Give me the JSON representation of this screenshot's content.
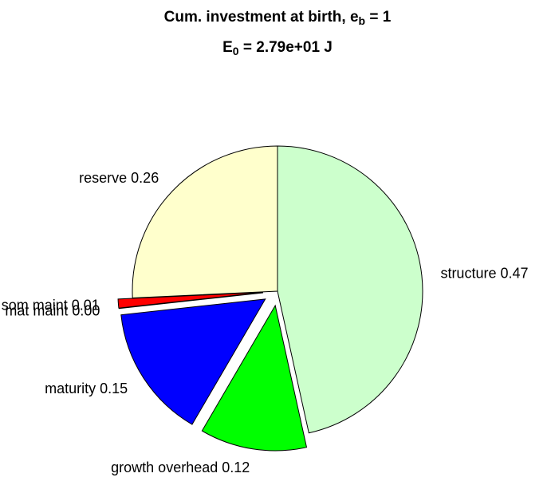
{
  "chart_data": {
    "type": "pie",
    "title": [
      {
        "text": "Cum. investment at birth, e"
      },
      {
        "text": "b",
        "sub": true
      },
      {
        "text": " = 1"
      }
    ],
    "subtitle": [
      {
        "text": "E"
      },
      {
        "text": "0",
        "sub": true
      },
      {
        "text": " = 2.79e+01 J"
      }
    ],
    "categories": [
      "reserve",
      "som maint",
      "mat maint",
      "maturity",
      "growth overhead",
      "structure"
    ],
    "values": [
      0.26,
      0.01,
      0.0,
      0.15,
      0.12,
      0.47
    ],
    "value_labels": [
      "0.26",
      "0.01",
      "0.00",
      "0.15",
      "0.12",
      "0.47"
    ],
    "colors": [
      "#ffffcc",
      "#ff0000",
      "#ff00ff",
      "#0000ff",
      "#00ff00",
      "#ccffcc"
    ],
    "explode": [
      false,
      true,
      true,
      true,
      true,
      false
    ]
  }
}
